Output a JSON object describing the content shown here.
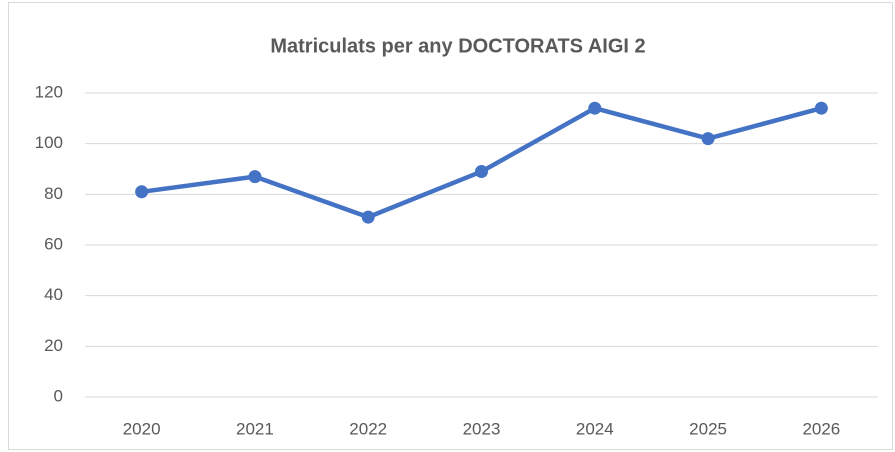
{
  "chart_data": {
    "type": "line",
    "title": "Matriculats per any DOCTORATS AIGI 2",
    "categories": [
      "2020",
      "2021",
      "2022",
      "2023",
      "2024",
      "2025",
      "2026"
    ],
    "values": [
      81,
      87,
      71,
      89,
      114,
      102,
      114
    ],
    "color": "#4472c4",
    "ylim": [
      0,
      120
    ],
    "yticks": [
      0,
      20,
      40,
      60,
      80,
      100,
      120
    ],
    "grid": true
  }
}
